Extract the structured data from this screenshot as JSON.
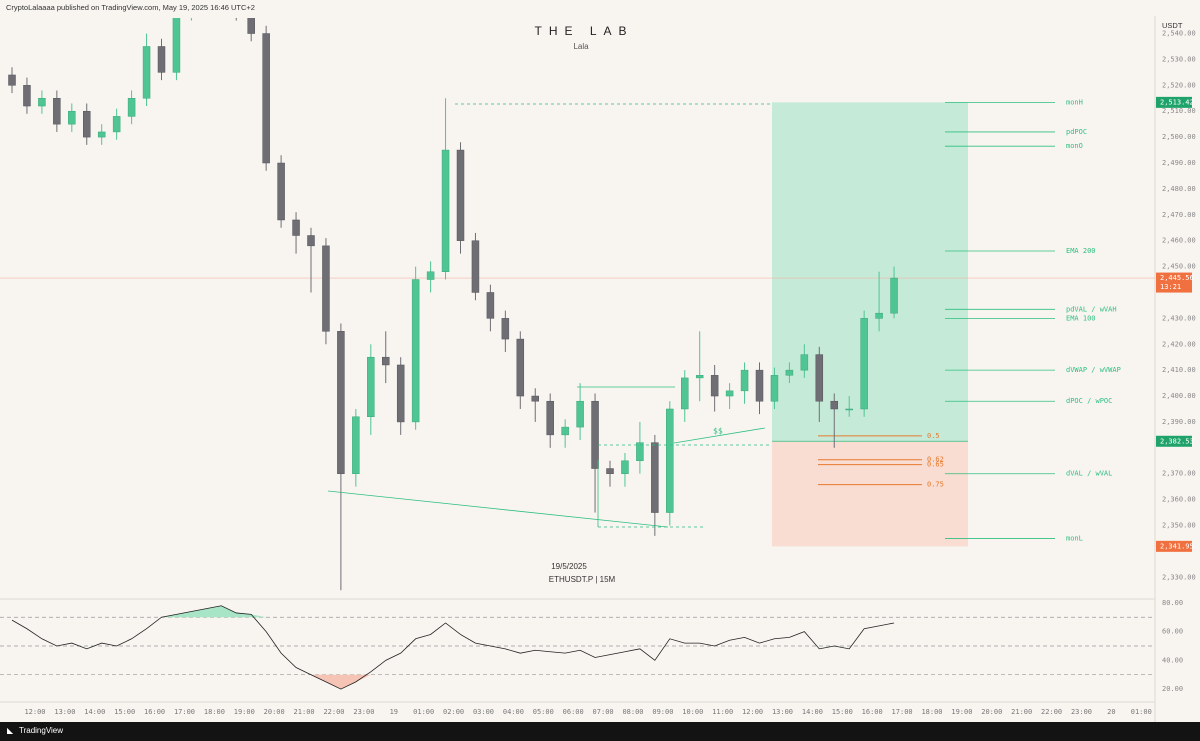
{
  "header": "CryptoLalaaaa published on TradingView.com, May 19, 2025 16:46 UTC+2",
  "footer": "TradingView",
  "chart_data": {
    "type": "candlestick",
    "title": "THE LAB",
    "subtitle": "Lala",
    "date_label": "19/5/2025",
    "symbol_label": "ETHUSDT.P | 15M",
    "currency": "USDT",
    "up_color": "#4fc594",
    "down_color": "#6e6e74",
    "candles": {
      "open": [
        2524,
        2520,
        2512,
        2515,
        2505,
        2510,
        2500,
        2502,
        2508,
        2515,
        2535,
        2525,
        2548,
        2552,
        2555,
        2552,
        2548,
        2540,
        2490,
        2468,
        2462,
        2458,
        2425,
        2370,
        2392,
        2415,
        2412,
        2390,
        2445,
        2448,
        2495,
        2460,
        2440,
        2430,
        2422,
        2400,
        2398,
        2385,
        2388,
        2398,
        2372,
        2370,
        2375,
        2382,
        2355,
        2395,
        2407,
        2408,
        2400,
        2402,
        2410,
        2398,
        2408,
        2410,
        2416,
        2398,
        2395,
        2395,
        2430,
        2432
      ],
      "high": [
        2527,
        2523,
        2518,
        2518,
        2513,
        2513,
        2505,
        2511,
        2518,
        2540,
        2538,
        2551,
        2555,
        2558,
        2558,
        2555,
        2551,
        2543,
        2493,
        2471,
        2465,
        2461,
        2428,
        2395,
        2420,
        2425,
        2415,
        2450,
        2452,
        2515,
        2498,
        2463,
        2443,
        2433,
        2425,
        2403,
        2401,
        2391,
        2405,
        2401,
        2375,
        2378,
        2390,
        2385,
        2398,
        2410,
        2425,
        2412,
        2405,
        2413,
        2413,
        2411,
        2413,
        2420,
        2419,
        2401,
        2400,
        2433,
        2448,
        2450
      ],
      "low": [
        2517,
        2509,
        2509,
        2502,
        2502,
        2497,
        2497,
        2499,
        2505,
        2512,
        2522,
        2522,
        2545,
        2549,
        2549,
        2545,
        2537,
        2487,
        2465,
        2455,
        2440,
        2420,
        2325,
        2365,
        2385,
        2405,
        2385,
        2387,
        2440,
        2445,
        2455,
        2437,
        2425,
        2417,
        2395,
        2390,
        2380,
        2380,
        2383,
        2355,
        2365,
        2365,
        2370,
        2346,
        2350,
        2390,
        2398,
        2394,
        2395,
        2397,
        2393,
        2395,
        2405,
        2407,
        2390,
        2380,
        2392,
        2392,
        2425,
        2430
      ],
      "close": [
        2520,
        2512,
        2515,
        2505,
        2510,
        2500,
        2502,
        2508,
        2515,
        2535,
        2525,
        2548,
        2552,
        2555,
        2552,
        2548,
        2540,
        2490,
        2468,
        2462,
        2458,
        2425,
        2370,
        2392,
        2415,
        2412,
        2390,
        2445,
        2448,
        2495,
        2460,
        2440,
        2430,
        2422,
        2400,
        2398,
        2385,
        2388,
        2398,
        2372,
        2370,
        2375,
        2382,
        2355,
        2395,
        2407,
        2408,
        2400,
        2402,
        2410,
        2398,
        2408,
        2410,
        2416,
        2398,
        2395,
        2395,
        2430,
        2432,
        2445.56
      ]
    },
    "ylim": [
      2546,
      2322
    ],
    "yticks": [
      {
        "value": 2540,
        "label": "2,540.00"
      },
      {
        "value": 2530,
        "label": "2,530.00"
      },
      {
        "value": 2520,
        "label": "2,520.00"
      },
      {
        "value": 2510,
        "label": "2,510.00"
      },
      {
        "value": 2500,
        "label": "2,500.00"
      },
      {
        "value": 2490,
        "label": "2,490.00"
      },
      {
        "value": 2480,
        "label": "2,480.00"
      },
      {
        "value": 2470,
        "label": "2,470.00"
      },
      {
        "value": 2460,
        "label": "2,460.00"
      },
      {
        "value": 2450,
        "label": "2,450.00"
      },
      {
        "value": 2430,
        "label": "2,430.00"
      },
      {
        "value": 2420,
        "label": "2,420.00"
      },
      {
        "value": 2410,
        "label": "2,410.00"
      },
      {
        "value": 2400,
        "label": "2,400.00"
      },
      {
        "value": 2390,
        "label": "2,390.00"
      },
      {
        "value": 2370,
        "label": "2,370.00"
      },
      {
        "value": 2360,
        "label": "2,360.00"
      },
      {
        "value": 2350,
        "label": "2,350.00"
      },
      {
        "value": 2330,
        "label": "2,330.00"
      }
    ],
    "price_badges": [
      {
        "value": 2513.42,
        "label": "2,513.42",
        "color": "#1fa36b"
      },
      {
        "value": 2445.56,
        "label": "2,445.56",
        "color": "#f0713f"
      },
      {
        "value": 2382.53,
        "label": "2,382.53",
        "color": "#1fa36b"
      },
      {
        "value": 2341.95,
        "label": "2,341.95",
        "color": "#f0713f"
      }
    ],
    "countdown": "13:21",
    "levels": [
      {
        "name": "monH",
        "value": 2513.42
      },
      {
        "name": "pdPOC",
        "value": 2502
      },
      {
        "name": "monO",
        "value": 2496.5
      },
      {
        "name": "EMA 200",
        "value": 2456
      },
      {
        "name": "pdVAL / wVAH",
        "value": 2433.5
      },
      {
        "name": "EMA 100",
        "value": 2430
      },
      {
        "name": "dVWAP / wVWAP",
        "value": 2410
      },
      {
        "name": "dPOC / wPOC",
        "value": 2398
      },
      {
        "name": "dVAL / wVAL",
        "value": 2370
      },
      {
        "name": "monL",
        "value": 2345
      }
    ],
    "level_color": "#2fbf7f",
    "fib_levels": [
      {
        "name": "0.5",
        "value": 2384.6
      },
      {
        "name": "0.62",
        "value": 2375.4
      },
      {
        "name": "0.65",
        "value": 2373.5
      },
      {
        "name": "0.75",
        "value": 2365.8
      }
    ],
    "fib_color": "#e87a2c",
    "annotation": "$$",
    "rsi": {
      "values": [
        68,
        62,
        55,
        50,
        52,
        48,
        52,
        50,
        55,
        62,
        70,
        72,
        74,
        76,
        78,
        73,
        72,
        60,
        45,
        35,
        30,
        25,
        20,
        25,
        32,
        40,
        45,
        55,
        58,
        66,
        58,
        52,
        50,
        48,
        45,
        47,
        46,
        45,
        47,
        42,
        44,
        46,
        48,
        40,
        55,
        52,
        52,
        50,
        54,
        56,
        52,
        55,
        56,
        60,
        48,
        50,
        48,
        62,
        64,
        66
      ],
      "ylim": [
        82,
        11
      ],
      "yticks": [
        {
          "value": 80,
          "label": "80.00"
        },
        {
          "value": 60,
          "label": "60.00"
        },
        {
          "value": 40,
          "label": "40.00"
        },
        {
          "value": 20,
          "label": "20.00"
        }
      ],
      "bands": [
        70,
        50,
        30
      ]
    },
    "time_labels": [
      "12:00",
      "13:00",
      "14:00",
      "15:00",
      "16:00",
      "17:00",
      "18:00",
      "19:00",
      "20:00",
      "21:00",
      "22:00",
      "23:00",
      "19",
      "01:00",
      "02:00",
      "03:00",
      "04:00",
      "05:00",
      "06:00",
      "07:00",
      "08:00",
      "09:00",
      "10:00",
      "11:00",
      "12:00",
      "13:00",
      "14:00",
      "15:00",
      "16:00",
      "17:00",
      "18:00",
      "19:00",
      "20:00",
      "21:00",
      "22:00",
      "23:00",
      "20",
      "01:00"
    ]
  }
}
